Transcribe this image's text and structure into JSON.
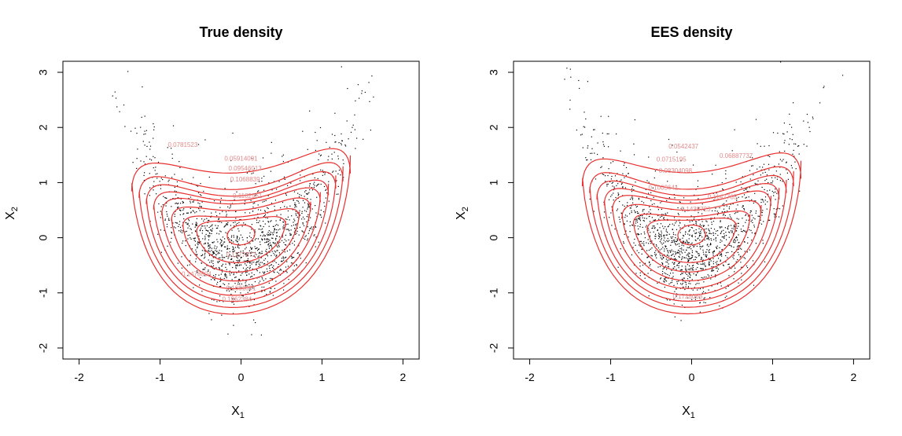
{
  "chart_data": [
    {
      "type": "contour",
      "title": "True density",
      "xlabel": "X",
      "xlabel_sub": "1",
      "ylabel": "X",
      "ylabel_sub": "2",
      "xlim": [
        -2.2,
        2.2
      ],
      "ylim": [
        -2.2,
        3.2
      ],
      "xticks": [
        -2,
        -1,
        0,
        1,
        2
      ],
      "yticks": [
        -2,
        -1,
        0,
        1,
        2,
        3
      ],
      "contour_color": "#e8302f",
      "points_color": "#000000",
      "contour_labels": [
        "0.05914091",
        "0.0781523",
        "0.09546013",
        "0.1068839",
        "0.1182961",
        "0.1277872",
        "0.1478804",
        "0.1681891",
        "0.1962384"
      ]
    },
    {
      "type": "contour",
      "title": "EES density",
      "xlabel": "X",
      "xlabel_sub": "1",
      "ylabel": "X",
      "ylabel_sub": "2",
      "xlim": [
        -2.2,
        2.2
      ],
      "ylim": [
        -2.2,
        3.2
      ],
      "xticks": [
        -2,
        -1,
        0,
        1,
        2
      ],
      "yticks": [
        -2,
        -1,
        0,
        1,
        2,
        3
      ],
      "contour_color": "#e8302f",
      "points_color": "#000000",
      "contour_labels": [
        "0.0542437",
        "0.06887737",
        "0.0715195",
        "0.08304098",
        "0.1003641",
        "0.1147765",
        "0.1438723",
        "0.1725068"
      ]
    }
  ]
}
